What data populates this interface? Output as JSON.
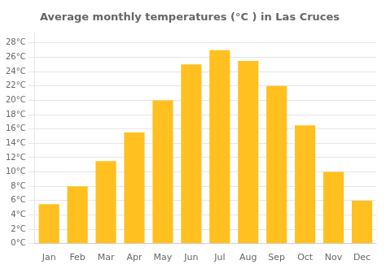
{
  "chart_data": {
    "type": "bar",
    "title": "Average monthly temperatures (°C ) in Las Cruces",
    "categories": [
      "Jan",
      "Feb",
      "Mar",
      "Apr",
      "May",
      "Jun",
      "Jul",
      "Aug",
      "Sep",
      "Oct",
      "Nov",
      "Dec"
    ],
    "values": [
      5.5,
      8.0,
      11.5,
      15.5,
      20.0,
      25.0,
      27.0,
      25.5,
      22.0,
      16.5,
      10.0,
      6.0
    ],
    "color": "#FFC020",
    "ylim": [
      0,
      29.5
    ],
    "yticks": [
      {
        "value": 0,
        "label": "0°C"
      },
      {
        "value": 2,
        "label": "2°C"
      },
      {
        "value": 4,
        "label": "4°C"
      },
      {
        "value": 6,
        "label": "6°C"
      },
      {
        "value": 8,
        "label": "8°C"
      },
      {
        "value": 10,
        "label": "10°C"
      },
      {
        "value": 12,
        "label": "12°C"
      },
      {
        "value": 14,
        "label": "14°C"
      },
      {
        "value": 16,
        "label": "16°C"
      },
      {
        "value": 18,
        "label": "18°C"
      },
      {
        "value": 20,
        "label": "20°C"
      },
      {
        "value": 22,
        "label": "22°C"
      },
      {
        "value": 24,
        "label": "24°C"
      },
      {
        "value": 26,
        "label": "26°C"
      },
      {
        "value": 28,
        "label": "28°C"
      }
    ],
    "grid": true
  }
}
